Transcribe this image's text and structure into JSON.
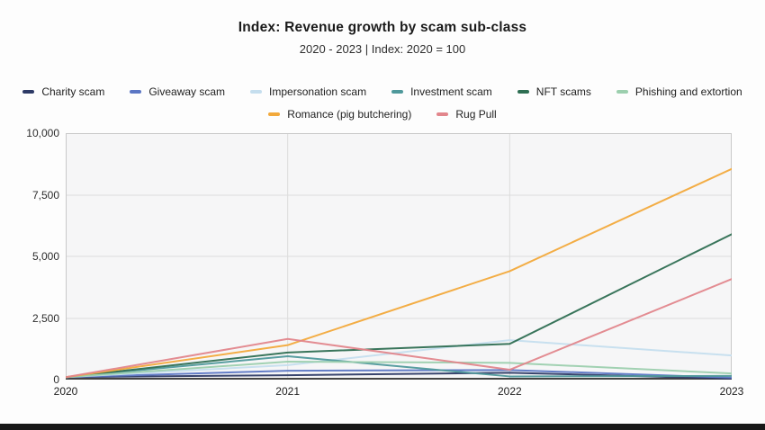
{
  "header": {
    "title": "Index: Revenue growth by scam sub-class",
    "subtitle": "2020 - 2023 | Index: 2020 = 100"
  },
  "chart_data": {
    "type": "line",
    "x": [
      2020,
      2021,
      2022,
      2023
    ],
    "xtick_labels": [
      "2020",
      "2021",
      "2022",
      "2023"
    ],
    "ylim": [
      0,
      10000
    ],
    "yticks": [
      0,
      2500,
      5000,
      7500,
      10000
    ],
    "ytick_labels": [
      "0",
      "2,500",
      "5,000",
      "7,500",
      "10,000"
    ],
    "grid": true,
    "legend_position": "top",
    "series": [
      {
        "name": "Charity scam",
        "color": "#2d3a66",
        "values": [
          100,
          180,
          280,
          40
        ]
      },
      {
        "name": "Giveaway scam",
        "color": "#5b76c4",
        "values": [
          100,
          360,
          390,
          80
        ]
      },
      {
        "name": "Impersonation scam",
        "color": "#c5deee",
        "values": [
          100,
          590,
          1600,
          980
        ]
      },
      {
        "name": "Investment scam",
        "color": "#4f999b",
        "values": [
          100,
          950,
          130,
          150
        ]
      },
      {
        "name": "NFT scams",
        "color": "#2e6e52",
        "values": [
          100,
          1100,
          1450,
          5900
        ]
      },
      {
        "name": "Phishing and extortion",
        "color": "#9ccfae",
        "values": [
          100,
          730,
          680,
          250
        ]
      },
      {
        "name": "Romance (pig butchering)",
        "color": "#f2a93b",
        "values": [
          100,
          1400,
          4400,
          8550
        ]
      },
      {
        "name": "Rug Pull",
        "color": "#e2868c",
        "values": [
          100,
          1650,
          400,
          4080
        ]
      }
    ]
  },
  "colors": {
    "page_bg": "#fdfdfd",
    "plot_bg": "#f6f6f7",
    "gridline": "#dcdcdc",
    "plot_border": "#c9c9c9",
    "axis_line": "#444444",
    "footer_bar": "#181818"
  }
}
